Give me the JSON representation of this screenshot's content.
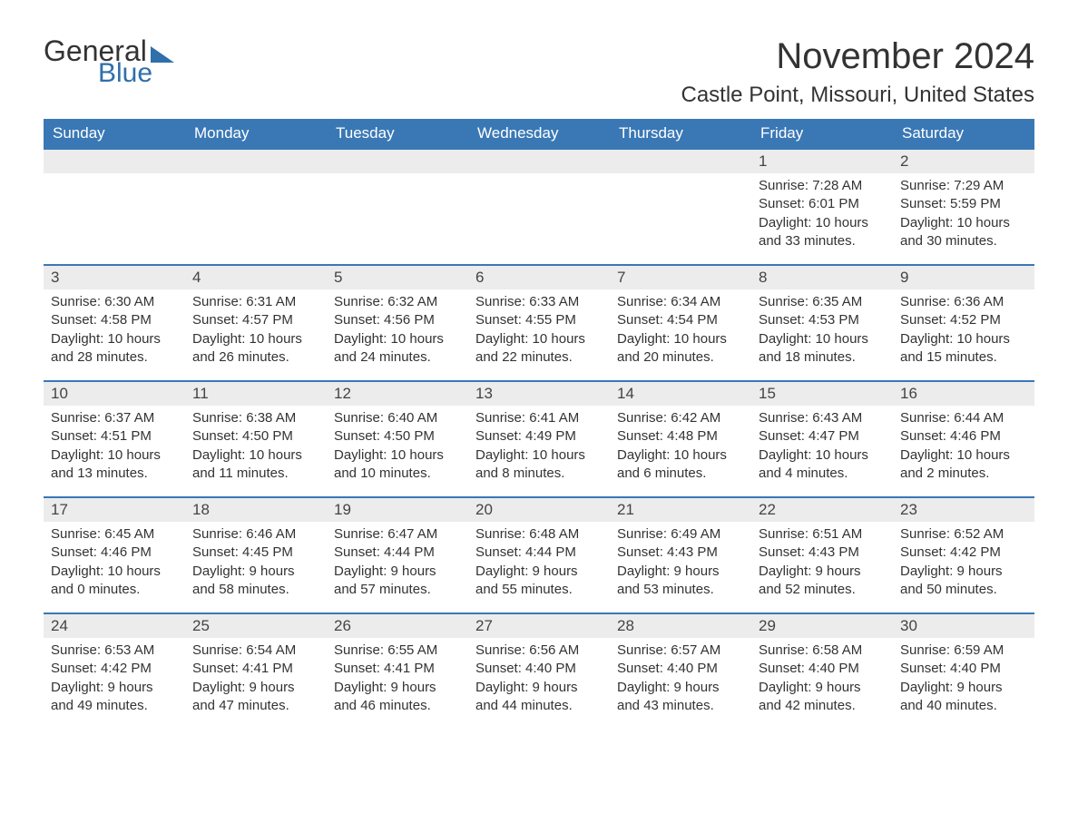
{
  "brand": {
    "general": "General",
    "blue": "Blue"
  },
  "title": "November 2024",
  "location": "Castle Point, Missouri, United States",
  "colors": {
    "header_bg": "#3a78b5",
    "header_text": "#ffffff",
    "rule": "#3a78b5",
    "daynum_bg": "#ececec",
    "text": "#333333",
    "logo_blue": "#2f6fab",
    "page_bg": "#ffffff"
  },
  "dayHeaders": [
    "Sunday",
    "Monday",
    "Tuesday",
    "Wednesday",
    "Thursday",
    "Friday",
    "Saturday"
  ],
  "weeks": [
    [
      {
        "n": "",
        "sr": "",
        "ss": "",
        "dl": ""
      },
      {
        "n": "",
        "sr": "",
        "ss": "",
        "dl": ""
      },
      {
        "n": "",
        "sr": "",
        "ss": "",
        "dl": ""
      },
      {
        "n": "",
        "sr": "",
        "ss": "",
        "dl": ""
      },
      {
        "n": "",
        "sr": "",
        "ss": "",
        "dl": ""
      },
      {
        "n": "1",
        "sr": "Sunrise: 7:28 AM",
        "ss": "Sunset: 6:01 PM",
        "dl": "Daylight: 10 hours and 33 minutes."
      },
      {
        "n": "2",
        "sr": "Sunrise: 7:29 AM",
        "ss": "Sunset: 5:59 PM",
        "dl": "Daylight: 10 hours and 30 minutes."
      }
    ],
    [
      {
        "n": "3",
        "sr": "Sunrise: 6:30 AM",
        "ss": "Sunset: 4:58 PM",
        "dl": "Daylight: 10 hours and 28 minutes."
      },
      {
        "n": "4",
        "sr": "Sunrise: 6:31 AM",
        "ss": "Sunset: 4:57 PM",
        "dl": "Daylight: 10 hours and 26 minutes."
      },
      {
        "n": "5",
        "sr": "Sunrise: 6:32 AM",
        "ss": "Sunset: 4:56 PM",
        "dl": "Daylight: 10 hours and 24 minutes."
      },
      {
        "n": "6",
        "sr": "Sunrise: 6:33 AM",
        "ss": "Sunset: 4:55 PM",
        "dl": "Daylight: 10 hours and 22 minutes."
      },
      {
        "n": "7",
        "sr": "Sunrise: 6:34 AM",
        "ss": "Sunset: 4:54 PM",
        "dl": "Daylight: 10 hours and 20 minutes."
      },
      {
        "n": "8",
        "sr": "Sunrise: 6:35 AM",
        "ss": "Sunset: 4:53 PM",
        "dl": "Daylight: 10 hours and 18 minutes."
      },
      {
        "n": "9",
        "sr": "Sunrise: 6:36 AM",
        "ss": "Sunset: 4:52 PM",
        "dl": "Daylight: 10 hours and 15 minutes."
      }
    ],
    [
      {
        "n": "10",
        "sr": "Sunrise: 6:37 AM",
        "ss": "Sunset: 4:51 PM",
        "dl": "Daylight: 10 hours and 13 minutes."
      },
      {
        "n": "11",
        "sr": "Sunrise: 6:38 AM",
        "ss": "Sunset: 4:50 PM",
        "dl": "Daylight: 10 hours and 11 minutes."
      },
      {
        "n": "12",
        "sr": "Sunrise: 6:40 AM",
        "ss": "Sunset: 4:50 PM",
        "dl": "Daylight: 10 hours and 10 minutes."
      },
      {
        "n": "13",
        "sr": "Sunrise: 6:41 AM",
        "ss": "Sunset: 4:49 PM",
        "dl": "Daylight: 10 hours and 8 minutes."
      },
      {
        "n": "14",
        "sr": "Sunrise: 6:42 AM",
        "ss": "Sunset: 4:48 PM",
        "dl": "Daylight: 10 hours and 6 minutes."
      },
      {
        "n": "15",
        "sr": "Sunrise: 6:43 AM",
        "ss": "Sunset: 4:47 PM",
        "dl": "Daylight: 10 hours and 4 minutes."
      },
      {
        "n": "16",
        "sr": "Sunrise: 6:44 AM",
        "ss": "Sunset: 4:46 PM",
        "dl": "Daylight: 10 hours and 2 minutes."
      }
    ],
    [
      {
        "n": "17",
        "sr": "Sunrise: 6:45 AM",
        "ss": "Sunset: 4:46 PM",
        "dl": "Daylight: 10 hours and 0 minutes."
      },
      {
        "n": "18",
        "sr": "Sunrise: 6:46 AM",
        "ss": "Sunset: 4:45 PM",
        "dl": "Daylight: 9 hours and 58 minutes."
      },
      {
        "n": "19",
        "sr": "Sunrise: 6:47 AM",
        "ss": "Sunset: 4:44 PM",
        "dl": "Daylight: 9 hours and 57 minutes."
      },
      {
        "n": "20",
        "sr": "Sunrise: 6:48 AM",
        "ss": "Sunset: 4:44 PM",
        "dl": "Daylight: 9 hours and 55 minutes."
      },
      {
        "n": "21",
        "sr": "Sunrise: 6:49 AM",
        "ss": "Sunset: 4:43 PM",
        "dl": "Daylight: 9 hours and 53 minutes."
      },
      {
        "n": "22",
        "sr": "Sunrise: 6:51 AM",
        "ss": "Sunset: 4:43 PM",
        "dl": "Daylight: 9 hours and 52 minutes."
      },
      {
        "n": "23",
        "sr": "Sunrise: 6:52 AM",
        "ss": "Sunset: 4:42 PM",
        "dl": "Daylight: 9 hours and 50 minutes."
      }
    ],
    [
      {
        "n": "24",
        "sr": "Sunrise: 6:53 AM",
        "ss": "Sunset: 4:42 PM",
        "dl": "Daylight: 9 hours and 49 minutes."
      },
      {
        "n": "25",
        "sr": "Sunrise: 6:54 AM",
        "ss": "Sunset: 4:41 PM",
        "dl": "Daylight: 9 hours and 47 minutes."
      },
      {
        "n": "26",
        "sr": "Sunrise: 6:55 AM",
        "ss": "Sunset: 4:41 PM",
        "dl": "Daylight: 9 hours and 46 minutes."
      },
      {
        "n": "27",
        "sr": "Sunrise: 6:56 AM",
        "ss": "Sunset: 4:40 PM",
        "dl": "Daylight: 9 hours and 44 minutes."
      },
      {
        "n": "28",
        "sr": "Sunrise: 6:57 AM",
        "ss": "Sunset: 4:40 PM",
        "dl": "Daylight: 9 hours and 43 minutes."
      },
      {
        "n": "29",
        "sr": "Sunrise: 6:58 AM",
        "ss": "Sunset: 4:40 PM",
        "dl": "Daylight: 9 hours and 42 minutes."
      },
      {
        "n": "30",
        "sr": "Sunrise: 6:59 AM",
        "ss": "Sunset: 4:40 PM",
        "dl": "Daylight: 9 hours and 40 minutes."
      }
    ]
  ]
}
